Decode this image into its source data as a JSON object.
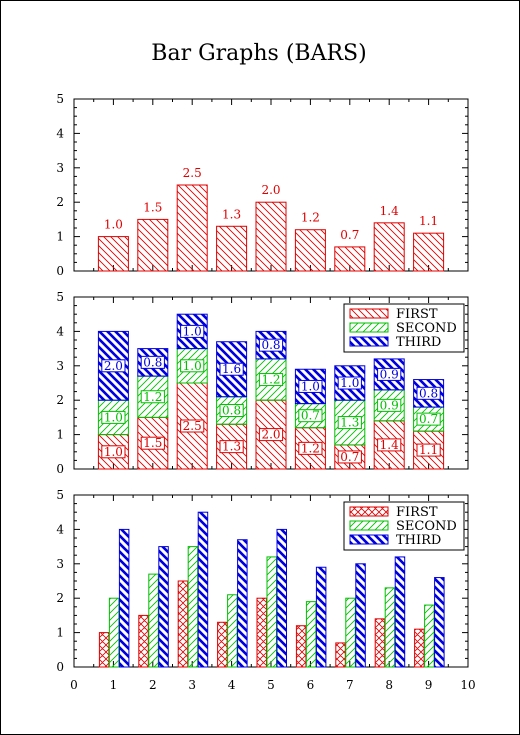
{
  "page": {
    "title": "Bar Graphs (BARS)"
  },
  "colors": {
    "first": "#e00000",
    "second": "#00c000",
    "third": "#0000e0",
    "axis": "#000000"
  },
  "legend": [
    "FIRST",
    "SECOND",
    "THIRD"
  ],
  "chart_data": [
    {
      "type": "bar",
      "title": "Bar Graphs (BARS)",
      "x": [
        1,
        2,
        3,
        4,
        5,
        6,
        7,
        8,
        9
      ],
      "series": [
        {
          "values": [
            1.0,
            1.5,
            2.5,
            1.3,
            2.0,
            1.2,
            0.7,
            1.4,
            1.1
          ],
          "labels": [
            "1.0",
            "1.5",
            "2.5",
            "1.3",
            "2.0",
            "1.2",
            "0.7",
            "1.4",
            "1.1"
          ]
        }
      ],
      "ylim": [
        0,
        5
      ],
      "yticks": [
        0,
        1,
        2,
        3,
        4,
        5
      ]
    },
    {
      "type": "bar",
      "stacked": true,
      "x": [
        1,
        2,
        3,
        4,
        5,
        6,
        7,
        8,
        9
      ],
      "series": [
        {
          "name": "FIRST",
          "values": [
            1.0,
            1.5,
            2.5,
            1.3,
            2.0,
            1.2,
            0.7,
            1.4,
            1.1
          ],
          "labels": [
            "1.0",
            "1.5",
            "2.5",
            "1.3",
            "2.0",
            "1.2",
            "0.7",
            "1.4",
            "1.1"
          ]
        },
        {
          "name": "SECOND",
          "values": [
            1.0,
            1.2,
            1.0,
            0.8,
            1.2,
            0.7,
            1.3,
            0.9,
            0.7
          ],
          "labels": [
            "1.0",
            "1.2",
            "1.0",
            "0.8",
            "1.2",
            "0.7",
            "1.3",
            "0.9",
            "0.7"
          ]
        },
        {
          "name": "THIRD",
          "values": [
            2.0,
            0.8,
            1.0,
            1.6,
            0.8,
            1.0,
            1.0,
            0.9,
            0.8
          ],
          "labels": [
            "2.0",
            "0.8",
            "1.0",
            "1.6",
            "0.8",
            "1.0",
            "1.0",
            "0.9",
            "0.8"
          ]
        }
      ],
      "ylim": [
        0,
        5
      ],
      "yticks": [
        0,
        1,
        2,
        3,
        4,
        5
      ],
      "legend_position": "top-right"
    },
    {
      "type": "bar",
      "grouped": true,
      "x": [
        1,
        2,
        3,
        4,
        5,
        6,
        7,
        8,
        9
      ],
      "series": [
        {
          "name": "FIRST",
          "values": [
            1.0,
            1.5,
            2.5,
            1.3,
            2.0,
            1.2,
            0.7,
            1.4,
            1.1
          ]
        },
        {
          "name": "SECOND",
          "values": [
            2.0,
            2.7,
            3.5,
            2.1,
            3.2,
            1.9,
            2.0,
            2.3,
            1.8
          ]
        },
        {
          "name": "THIRD",
          "values": [
            4.0,
            3.5,
            4.5,
            3.7,
            4.0,
            2.9,
            3.0,
            3.2,
            2.6
          ]
        }
      ],
      "ylim": [
        0,
        5
      ],
      "yticks": [
        0,
        1,
        2,
        3,
        4,
        5
      ],
      "xlim": [
        0,
        10
      ],
      "xticks": [
        0,
        1,
        2,
        3,
        4,
        5,
        6,
        7,
        8,
        9,
        10
      ],
      "legend_position": "top-right"
    }
  ]
}
